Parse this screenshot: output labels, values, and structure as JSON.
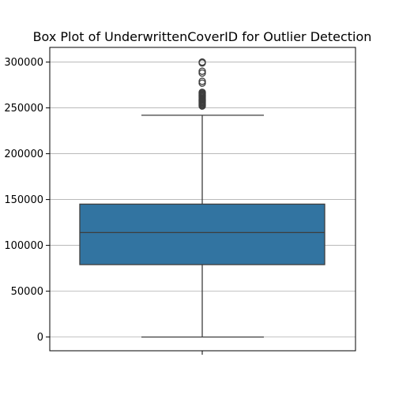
{
  "chart_data": {
    "type": "box",
    "title": "Box Plot of UnderwrittenCoverID for Outlier Detection",
    "xlabel": "",
    "ylabel": "",
    "ylim": [
      -15000,
      316000
    ],
    "yticks": [
      0,
      50000,
      100000,
      150000,
      200000,
      250000,
      300000
    ],
    "grid": "y",
    "color": "#3274a1",
    "box": {
      "whisker_low": 0,
      "q1": 79000,
      "median": 114000,
      "q3": 145000,
      "whisker_high": 242000
    },
    "outliers": [
      252000,
      253000,
      254000,
      255000,
      256000,
      257000,
      258000,
      259000,
      260000,
      261000,
      262000,
      263000,
      264000,
      265000,
      266000,
      267000,
      277000,
      279000,
      288000,
      290000,
      299000,
      300000
    ]
  }
}
